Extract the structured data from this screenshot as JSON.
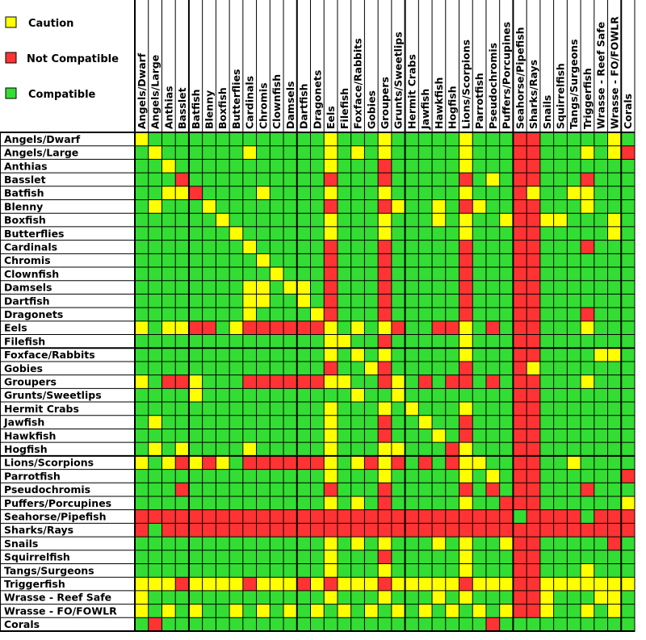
{
  "chart_data": {
    "type": "heatmap",
    "legend": {
      "placement": "top-left",
      "entries": [
        {
          "code": "C",
          "label": "Caution",
          "color": "#ffff00"
        },
        {
          "code": "N",
          "label": "Not Compatible",
          "color": "#ff3333"
        },
        {
          "code": "Y",
          "label": "Compatible",
          "color": "#33dd33"
        }
      ]
    },
    "columns": [
      "Angels/Dwarf",
      "Angels/Large",
      "Anthias",
      "Basslet",
      "Batfish",
      "Blenny",
      "Boxfish",
      "Butterflies",
      "Cardinals",
      "Chromis",
      "Clownfish",
      "Damsels",
      "Dartfish",
      "Dragonets",
      "Eels",
      "Filefish",
      "Foxface/Rabbits",
      "Gobies",
      "Groupers",
      "Grunts/Sweetlips",
      "Hermit Crabs",
      "Jawfish",
      "Hawkfish",
      "Hogfish",
      "Lions/Scorpions",
      "Parrotfish",
      "Pseudochromis",
      "Puffers/Porcupines",
      "Seahorse/Pipefish",
      "Sharks/Rays",
      "Snails",
      "Squirrelfish",
      "Tangs/Surgeons",
      "Triggerfish",
      "Wrasse - Reef Safe",
      "Wrasse - FO/FOWLR",
      "Corals"
    ],
    "rows": [
      "Angels/Dwarf",
      "Angels/Large",
      "Anthias",
      "Basslet",
      "Batfish",
      "Blenny",
      "Boxfish",
      "Butterflies",
      "Cardinals",
      "Chromis",
      "Clownfish",
      "Damsels",
      "Dartfish",
      "Dragonets",
      "Eels",
      "Filefish",
      "Foxface/Rabbits",
      "Gobies",
      "Groupers",
      "Grunts/Sweetlips",
      "Hermit Crabs",
      "Jawfish",
      "Hawkfish",
      "Hogfish",
      "Lions/Scorpions",
      "Parrotfish",
      "Pseudochromis",
      "Puffers/Porcupines",
      "Seahorse/Pipefish",
      "Sharks/Rays",
      "Snails",
      "Squirrelfish",
      "Tangs/Surgeons",
      "Triggerfish",
      "Wrasse - Reef Safe",
      "Wrasse - FO/FOWLR",
      "Corals"
    ],
    "values": [
      "CYYYYYYYYYYYYYCYYYCYYYYYCYYYNNYYYYYCY",
      "YCYYYYYYCYYYYYCYCYCYYYYYCYYYNNYYYCYCN",
      "YYCYYYYYYYYYYYCYYYNYYYYYCYYYNNYYYYYYY",
      "YYYNYYYYYYYYYYNYYYNYYYYYNYCYNNYYYNYYY",
      "YYCCNYYYYCYYYYCYYYCYYYYYCYYYNCYYCCYYY",
      "YCYYYCYYYYYYYYNYYYNCYYCYNCYYNNYYYCYYY",
      "YYYYYYCYYYYYYYCYYYCYYYCYCYYCNNCCYYYCY",
      "YYYYYYYCYYYYYYCYYYCYYYYYCYYYNNYYYYYCY",
      "YYYYYYYYCYYYYYNYYYNYYYYYNYYYNNYYYNYYY",
      "YYYYYYYYYCYYYYNYYYNYYYYYNYYYNNYYYYYYY",
      "YYYYYYYYYYCYYYNYYYNYYYYYNYYYNNYYYYYYY",
      "YYYYYYYYCCYCCYNYYYNYYYYYNYYYNNYYYYYYY",
      "YYYYYYYYCCYYCYNYYYNYYYYYNYYYNNYYYYYYY",
      "YYYYYYYYCYYYYCNYYYNYYYYYNYYYNNYYYNYYY",
      "CYCCNNYCNNNNNNCYCYCNYYNNCYNYNNYYYCYYY",
      "YYYYYYYYYYYYYYCCYYNYYYYYCYYYNNYYYYYYY",
      "YYYYYYYYYYYYYYCYCYCYYYYYCYYYNNYYYYCCY",
      "YYYYYYYYYYYYYYNYYCNYYYYYNYYYNCYYYYYYY",
      "CYNNCYYYNNNNNNCCYYNCYNYNNYNYNNYYYCYYY",
      "YYYYCYYYYYYYYYYYCYYCYYYYYYYYNNYYYYYYY",
      "YYYYYYYYYYYYYYCYYYCYCYYYCYYYNNYYYYYYY",
      "YCYYYYYYYYYYYYCYYYNYYCYYNYYYNNYYYYYYY",
      "YYYYYYYYYYYYYYCYYYNYYYCYNYYYNNYYYYYYY",
      "YCYCYYYYCYYYYYCYYYCCYYYNCYYYNNYYYYYYY",
      "CYCNCNCYNNNNNNCYCNCNYNYNCCYYNNYYCYYYY",
      "YYYYYYYYYYYYYYCYYYCYYYYYCYCYNNYYYYYYN",
      "YYYNYYYYYYYYYYNYYYNYYYYYNYNYNNYYYNYYY",
      "YYYYYYYYYYYYYYCYCYNYYYYYCYYNNNYYYYYYC",
      "NNNNNNNNNNNNNNNNNNNNNNNNNNNNYNNNNYNNN",
      "NYNNNNNNNNNNNNNNNNNNNNNNNNNNNNNNNNNNN",
      "YYYYYYYYYYYYYYCYCYCYYYCYCYYCNNYYYYYNY",
      "YYYYYYYYYYYYYYCYYYNYYYYYCYYYNNYYYYYYY",
      "YYYYYYYYYYYYYYCYYYCYYYYYCYYYNNYYYCYYY",
      "CCCNCCCCNCCCNCNCCCNCCCCCNCCCNNCCCCCCC",
      "CYYYYYYYYYYYYYCYYYCYYYCYCYYYNNCYYYCCY",
      "CYCYCYYCYCYCYCYCYCYCYCYCYCYCNNCYYCYCY",
      "YNYYYYYYYYYYYYYYYYYYYYYYYYNYYYYYYYYYY"
    ]
  }
}
